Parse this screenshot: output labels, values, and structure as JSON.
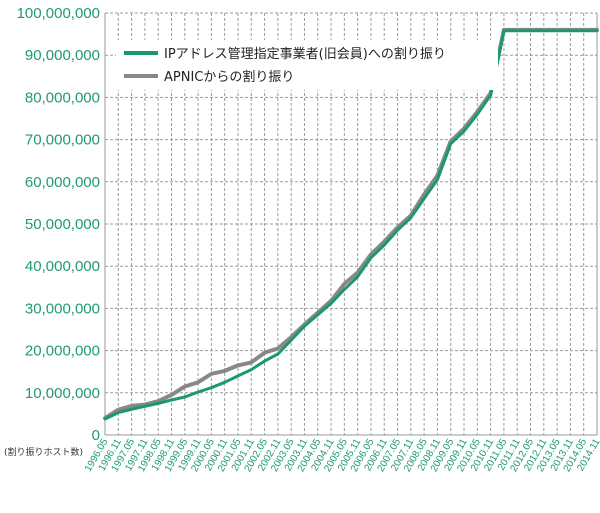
{
  "chart_data": {
    "type": "line",
    "title": "",
    "xlabel": "",
    "ylabel": "",
    "unit_label": "(割り振りホスト数)",
    "ylim": [
      0,
      100000000
    ],
    "y_ticks": [
      {
        "value": 0,
        "label": "0"
      },
      {
        "value": 10000000,
        "label": "10,000,000"
      },
      {
        "value": 20000000,
        "label": "20,000,000"
      },
      {
        "value": 30000000,
        "label": "30,000,000"
      },
      {
        "value": 40000000,
        "label": "40,000,000"
      },
      {
        "value": 50000000,
        "label": "50,000,000"
      },
      {
        "value": 60000000,
        "label": "60,000,000"
      },
      {
        "value": 70000000,
        "label": "70,000,000"
      },
      {
        "value": 80000000,
        "label": "80,000,000"
      },
      {
        "value": 90000000,
        "label": "90,000,000"
      },
      {
        "value": 100000000,
        "label": "100,000,000"
      }
    ],
    "categories": [
      "1996.05",
      "1996.11",
      "1997.05",
      "1997.11",
      "1998.05",
      "1998.11",
      "1999.05",
      "1999.11",
      "2000.05",
      "2000.11",
      "2001.05",
      "2001.11",
      "2002.05",
      "2002.11",
      "2003.05",
      "2003.11",
      "2004.05",
      "2004.11",
      "2005.05",
      "2005.11",
      "2006.05",
      "2006.11",
      "2007.05",
      "2007.11",
      "2008.05",
      "2008.11",
      "2009.05",
      "2009.11",
      "2010.05",
      "2010.11",
      "2011.05",
      "2011.11",
      "2012.05",
      "2012.11",
      "2013.05",
      "2013.11",
      "2014.05",
      "2014.11"
    ],
    "grid": true,
    "legend_position": "top-left",
    "series": [
      {
        "name": "IPアドレス管理指定事業者(旧会員)への割り振り",
        "color": "#1a9a6c",
        "values": [
          3800000,
          5300000,
          6100000,
          6800000,
          7500000,
          8300000,
          9000000,
          10200000,
          11200000,
          12500000,
          14000000,
          15500000,
          17500000,
          19200000,
          22500000,
          25800000,
          28500000,
          31200000,
          34500000,
          37500000,
          42000000,
          45000000,
          48500000,
          51500000,
          56000000,
          60500000,
          69000000,
          72000000,
          76000000,
          80500000,
          95800000,
          95800000,
          95800000,
          95800000,
          95800000,
          95800000,
          95800000,
          95800000
        ]
      },
      {
        "name": "APNICからの割り振り",
        "color": "#888888",
        "values": [
          4000000,
          6000000,
          6900000,
          7200000,
          8000000,
          9500000,
          11500000,
          12500000,
          14500000,
          15200000,
          16500000,
          17200000,
          19500000,
          20500000,
          23200000,
          26200000,
          29000000,
          31800000,
          35800000,
          38500000,
          42800000,
          45800000,
          49200000,
          52000000,
          57000000,
          61500000,
          69600000,
          72600000,
          76600000,
          81000000,
          96000000,
          96000000,
          96000000,
          96000000,
          96000000,
          96000000,
          96000000,
          96000000
        ]
      }
    ]
  }
}
